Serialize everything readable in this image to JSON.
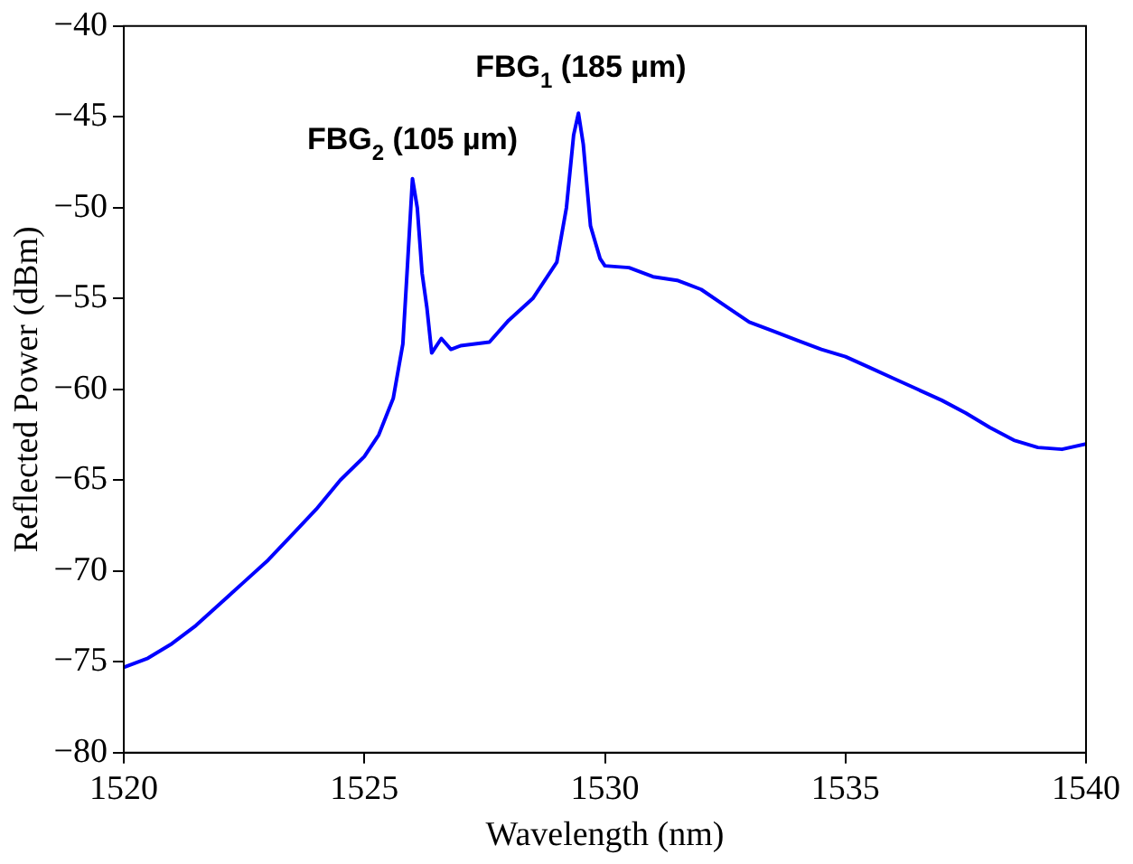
{
  "chart_data": {
    "type": "line",
    "xlabel": "Wavelength (nm)",
    "ylabel": "Reflected Power (dBm)",
    "xlim": [
      1520,
      1540
    ],
    "xticks": [
      1520,
      1525,
      1530,
      1535,
      1540
    ],
    "ylim": [
      -80,
      -40
    ],
    "yticks": [
      -80,
      -75,
      -70,
      -65,
      -60,
      -55,
      -50,
      -45,
      -40
    ],
    "grid": false,
    "legend": false,
    "marker": "none",
    "line_style": "solid",
    "annotations": [
      "FBG$_{2}$ (105 µm)",
      "FBG$_{1}$ (185 µm)"
    ],
    "series": [
      {
        "color": "#0000ff",
        "x": [
          1520,
          1520.5,
          1521,
          1521.5,
          1522,
          1522.5,
          1523,
          1523.5,
          1524,
          1524.5,
          1525,
          1525.3,
          1525.6,
          1525.8,
          1525.9,
          1526,
          1526.1,
          1526.2,
          1526.3,
          1526.4,
          1526.6,
          1526.8,
          1527,
          1527.3,
          1527.6,
          1528,
          1528.5,
          1529,
          1529.2,
          1529.35,
          1529.45,
          1529.55,
          1529.7,
          1529.9,
          1530,
          1530.5,
          1531,
          1531.5,
          1532,
          1532.5,
          1533,
          1533.5,
          1534,
          1534.5,
          1535,
          1535.5,
          1536,
          1536.5,
          1537,
          1537.5,
          1538,
          1538.5,
          1539,
          1539.5,
          1540
        ],
        "values": [
          -75.3,
          -74.8,
          -74.0,
          -73.0,
          -71.8,
          -70.6,
          -69.4,
          -68.0,
          -66.6,
          -65.0,
          -63.7,
          -62.5,
          -60.5,
          -57.5,
          -53,
          -48.4,
          -50,
          -53.6,
          -55.5,
          -58,
          -57.2,
          -57.8,
          -57.6,
          -57.5,
          -57.4,
          -56.2,
          -55,
          -53,
          -50,
          -46,
          -44.8,
          -46.5,
          -51,
          -52.8,
          -53.2,
          -53.3,
          -53.8,
          -54,
          -54.5,
          -55.4,
          -56.3,
          -56.8,
          -57.3,
          -57.8,
          -58.2,
          -58.8,
          -59.4,
          -60,
          -60.6,
          -61.3,
          -62.1,
          -62.8,
          -63.2,
          -63.3,
          -63
        ]
      }
    ]
  }
}
